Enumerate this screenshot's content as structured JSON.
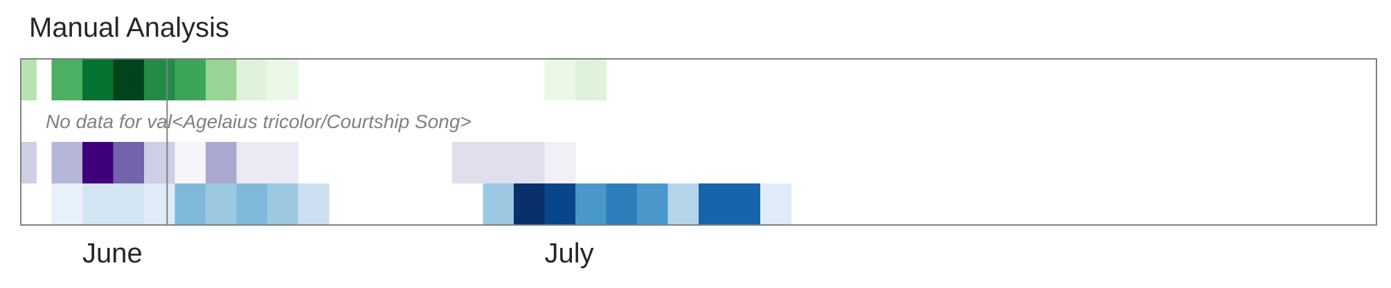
{
  "chart_data": {
    "type": "heatmap",
    "title": "Manual Analysis",
    "xlabel": "",
    "ylabel": "",
    "legend": "none",
    "grid": false,
    "x_start": "2019-05-28",
    "x_end": "2019-08-24",
    "month_ticks": [
      {
        "label": "June",
        "date": "2019-06-01"
      },
      {
        "label": "July",
        "date": "2019-07-01"
      }
    ],
    "marker_date": "2019-06-06",
    "rows": [
      {
        "colormap": "greens",
        "no_data_text": "",
        "cells": [
          {
            "date": "2019-05-28",
            "value": 0.3
          },
          {
            "date": "2019-05-30",
            "value": 0.6
          },
          {
            "date": "2019-05-31",
            "value": 0.6
          },
          {
            "date": "2019-06-01",
            "value": 0.85
          },
          {
            "date": "2019-06-02",
            "value": 0.85
          },
          {
            "date": "2019-06-03",
            "value": 1.0
          },
          {
            "date": "2019-06-04",
            "value": 1.0
          },
          {
            "date": "2019-06-05",
            "value": 0.75
          },
          {
            "date": "2019-06-06",
            "value": 0.75
          },
          {
            "date": "2019-06-07",
            "value": 0.65
          },
          {
            "date": "2019-06-08",
            "value": 0.65
          },
          {
            "date": "2019-06-09",
            "value": 0.4
          },
          {
            "date": "2019-06-10",
            "value": 0.4
          },
          {
            "date": "2019-06-11",
            "value": 0.15
          },
          {
            "date": "2019-06-12",
            "value": 0.15
          },
          {
            "date": "2019-06-13",
            "value": 0.08
          },
          {
            "date": "2019-06-14",
            "value": 0.08
          },
          {
            "date": "2019-07-01",
            "value": 0.08
          },
          {
            "date": "2019-07-02",
            "value": 0.08
          },
          {
            "date": "2019-07-03",
            "value": 0.15
          },
          {
            "date": "2019-07-04",
            "value": 0.15
          }
        ]
      },
      {
        "colormap": "none",
        "no_data_text": "No data for val<Agelaius tricolor/Courtship Song>",
        "cells": []
      },
      {
        "colormap": "purples",
        "no_data_text": "",
        "cells": [
          {
            "date": "2019-05-28",
            "value": 0.3
          },
          {
            "date": "2019-05-30",
            "value": 0.4
          },
          {
            "date": "2019-05-31",
            "value": 0.4
          },
          {
            "date": "2019-06-01",
            "value": 1.0
          },
          {
            "date": "2019-06-02",
            "value": 1.0
          },
          {
            "date": "2019-06-03",
            "value": 0.7
          },
          {
            "date": "2019-06-04",
            "value": 0.7
          },
          {
            "date": "2019-06-05",
            "value": 0.3
          },
          {
            "date": "2019-06-06",
            "value": 0.3
          },
          {
            "date": "2019-06-07",
            "value": 0.05
          },
          {
            "date": "2019-06-08",
            "value": 0.05
          },
          {
            "date": "2019-06-09",
            "value": 0.45
          },
          {
            "date": "2019-06-10",
            "value": 0.45
          },
          {
            "date": "2019-06-11",
            "value": 0.15
          },
          {
            "date": "2019-06-12",
            "value": 0.15
          },
          {
            "date": "2019-06-13",
            "value": 0.15
          },
          {
            "date": "2019-06-14",
            "value": 0.15
          },
          {
            "date": "2019-06-25",
            "value": 0.22
          },
          {
            "date": "2019-06-26",
            "value": 0.22
          },
          {
            "date": "2019-06-27",
            "value": 0.22
          },
          {
            "date": "2019-06-28",
            "value": 0.22
          },
          {
            "date": "2019-06-29",
            "value": 0.22
          },
          {
            "date": "2019-06-30",
            "value": 0.22
          },
          {
            "date": "2019-07-01",
            "value": 0.1
          },
          {
            "date": "2019-07-02",
            "value": 0.1
          }
        ]
      },
      {
        "colormap": "blues",
        "no_data_text": "",
        "cells": [
          {
            "date": "2019-05-30",
            "value": 0.08
          },
          {
            "date": "2019-05-31",
            "value": 0.08
          },
          {
            "date": "2019-06-01",
            "value": 0.18
          },
          {
            "date": "2019-06-02",
            "value": 0.18
          },
          {
            "date": "2019-06-03",
            "value": 0.18
          },
          {
            "date": "2019-06-04",
            "value": 0.18
          },
          {
            "date": "2019-06-05",
            "value": 0.12
          },
          {
            "date": "2019-06-06",
            "value": 0.12
          },
          {
            "date": "2019-06-07",
            "value": 0.45
          },
          {
            "date": "2019-06-08",
            "value": 0.45
          },
          {
            "date": "2019-06-09",
            "value": 0.38
          },
          {
            "date": "2019-06-10",
            "value": 0.38
          },
          {
            "date": "2019-06-11",
            "value": 0.45
          },
          {
            "date": "2019-06-12",
            "value": 0.45
          },
          {
            "date": "2019-06-13",
            "value": 0.38
          },
          {
            "date": "2019-06-14",
            "value": 0.38
          },
          {
            "date": "2019-06-15",
            "value": 0.22
          },
          {
            "date": "2019-06-16",
            "value": 0.22
          },
          {
            "date": "2019-06-27",
            "value": 0.38
          },
          {
            "date": "2019-06-28",
            "value": 0.38
          },
          {
            "date": "2019-06-29",
            "value": 1.0
          },
          {
            "date": "2019-06-30",
            "value": 1.0
          },
          {
            "date": "2019-07-01",
            "value": 0.92
          },
          {
            "date": "2019-07-02",
            "value": 0.92
          },
          {
            "date": "2019-07-03",
            "value": 0.6
          },
          {
            "date": "2019-07-04",
            "value": 0.6
          },
          {
            "date": "2019-07-05",
            "value": 0.7
          },
          {
            "date": "2019-07-06",
            "value": 0.7
          },
          {
            "date": "2019-07-07",
            "value": 0.6
          },
          {
            "date": "2019-07-08",
            "value": 0.6
          },
          {
            "date": "2019-07-09",
            "value": 0.3
          },
          {
            "date": "2019-07-10",
            "value": 0.3
          },
          {
            "date": "2019-07-11",
            "value": 0.8
          },
          {
            "date": "2019-07-12",
            "value": 0.8
          },
          {
            "date": "2019-07-13",
            "value": 0.8
          },
          {
            "date": "2019-07-14",
            "value": 0.8
          },
          {
            "date": "2019-07-15",
            "value": 0.12
          },
          {
            "date": "2019-07-16",
            "value": 0.12
          }
        ]
      }
    ]
  }
}
